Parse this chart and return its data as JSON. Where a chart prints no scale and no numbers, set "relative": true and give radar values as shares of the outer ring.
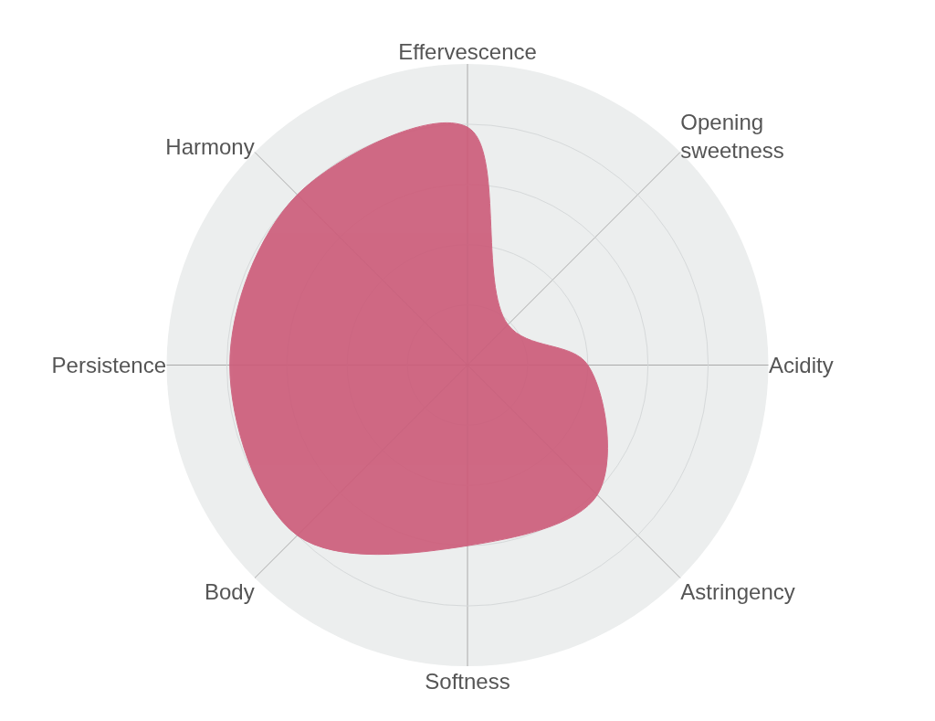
{
  "chart_data": {
    "type": "radar",
    "relative": true,
    "categories": [
      "Effervescence",
      "Opening sweetness",
      "Acidity",
      "Astringency",
      "Softness",
      "Body",
      "Persistence",
      "Harmony"
    ],
    "series": [
      {
        "color": "#cc5a78",
        "values": [
          0.79,
          0.19,
          0.4,
          0.61,
          0.6,
          0.8,
          0.79,
          0.8
        ]
      }
    ],
    "grid": true
  }
}
